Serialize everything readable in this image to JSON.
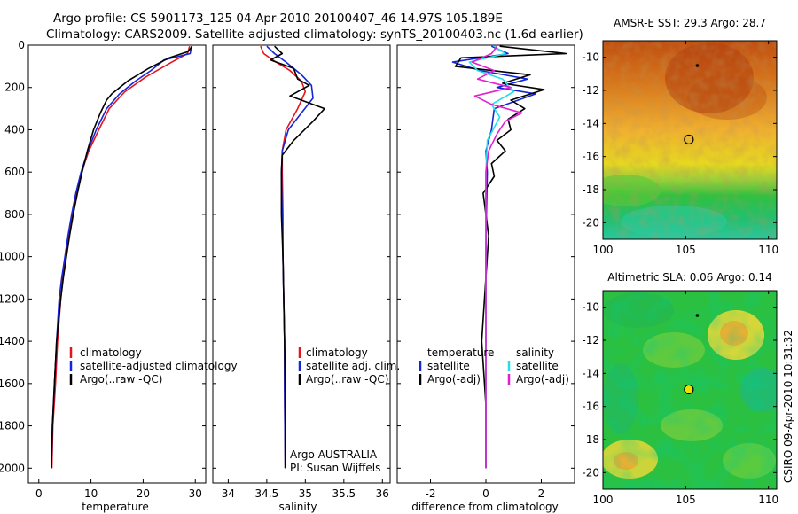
{
  "header": {
    "line1": "Argo profile: CS 5901173_125 04-Apr-2010 20100407_46 14.97S 105.189E",
    "line2": "Climatology: CARS2009. Satellite-adjusted climatology: synTS_20100403.nc (1.6d earlier)"
  },
  "footer": "CSIRO 09-Apr-2010 10:31:32",
  "colors": {
    "red": "#e8141c",
    "blue": "#1426d8",
    "black": "#000000",
    "cyan": "#22e0e8",
    "magenta": "#e020d0"
  },
  "chart_data": [
    {
      "type": "line",
      "name": "temperature-profile",
      "xlabel": "temperature",
      "ylabel": "",
      "xlim": [
        -2,
        32
      ],
      "ylim": [
        2070,
        0
      ],
      "xticks": [
        0,
        10,
        20,
        30
      ],
      "yticks": [
        0,
        200,
        400,
        600,
        800,
        1000,
        1200,
        1400,
        1600,
        1800,
        2000
      ],
      "legend": {
        "position": "bottom-right",
        "entries": [
          {
            "label": "climatology",
            "color": "#e8141c"
          },
          {
            "label": "satellite-adjusted climatology",
            "color": "#1426d8"
          },
          {
            "label": "Argo(..raw -QC)",
            "color": "#000000"
          }
        ]
      },
      "series": [
        {
          "name": "climatology",
          "color": "#e8141c",
          "x": [
            28.9,
            28.5,
            25.5,
            20.5,
            16.5,
            13.5,
            11.5,
            9.6,
            8.2,
            7.2,
            6.4,
            5.8,
            5.2,
            4.6,
            4.2,
            3.6,
            3.2,
            2.7,
            2.5
          ],
          "y": [
            5,
            40,
            80,
            150,
            220,
            300,
            400,
            500,
            600,
            700,
            800,
            900,
            1000,
            1100,
            1200,
            1400,
            1600,
            1800,
            2000
          ]
        },
        {
          "name": "satellite-adjusted climatology",
          "color": "#1426d8",
          "x": [
            29.3,
            29.0,
            24.0,
            21.5,
            18.5,
            15.5,
            13.0,
            11.0,
            9.4,
            8.1,
            7.1,
            6.3,
            5.6,
            5.0,
            4.4,
            3.9,
            3.4,
            3.0,
            2.6,
            2.4
          ],
          "y": [
            5,
            40,
            70,
            120,
            170,
            230,
            300,
            400,
            500,
            600,
            700,
            800,
            900,
            1000,
            1100,
            1200,
            1400,
            1600,
            1800,
            2000
          ]
        },
        {
          "name": "Argo(..raw -QC)",
          "color": "#000000",
          "x": [
            29.4,
            28.6,
            25.0,
            21.0,
            17.0,
            14.0,
            13.0,
            11.8,
            10.5,
            9.3,
            8.3,
            7.4,
            6.6,
            5.9,
            5.3,
            4.7,
            4.2,
            3.4,
            3.0,
            2.6,
            2.4
          ],
          "y": [
            5,
            30,
            60,
            110,
            170,
            230,
            260,
            320,
            400,
            500,
            600,
            700,
            800,
            900,
            1000,
            1100,
            1200,
            1400,
            1600,
            1800,
            2000
          ]
        }
      ]
    },
    {
      "type": "line",
      "name": "salinity-profile",
      "xlabel": "salinity",
      "xlim": [
        33.8,
        36.1
      ],
      "ylim": [
        2070,
        0
      ],
      "xticks": [
        34,
        34.5,
        35,
        35.5,
        36
      ],
      "legend": {
        "position": "bottom-right",
        "entries": [
          {
            "label": "climatology",
            "color": "#e8141c"
          },
          {
            "label": "satellite adj. clim.",
            "color": "#1426d8"
          },
          {
            "label": "Argo(..raw -QC)",
            "color": "#000000"
          }
        ]
      },
      "annotation": [
        "Argo AUSTRALIA",
        "PI: Susan Wijffels"
      ],
      "series": [
        {
          "name": "climatology",
          "color": "#e8141c",
          "x": [
            34.42,
            34.46,
            34.62,
            34.8,
            34.95,
            35.0,
            34.9,
            34.75,
            34.7,
            34.7,
            34.71,
            34.71,
            34.72,
            34.73,
            34.73,
            34.74
          ],
          "y": [
            5,
            40,
            80,
            120,
            170,
            220,
            300,
            400,
            500,
            600,
            800,
            1000,
            1200,
            1400,
            1600,
            2000
          ]
        },
        {
          "name": "satellite adj. clim.",
          "color": "#1426d8",
          "x": [
            34.5,
            34.6,
            34.75,
            34.95,
            35.08,
            35.1,
            34.95,
            34.78,
            34.7,
            34.69,
            34.7,
            34.71,
            34.72,
            34.73,
            34.73,
            34.74
          ],
          "y": [
            5,
            40,
            80,
            140,
            190,
            250,
            320,
            400,
            500,
            600,
            800,
            1000,
            1200,
            1400,
            1600,
            2000
          ]
        },
        {
          "name": "Argo(..raw -QC)",
          "color": "#000000",
          "x": [
            34.6,
            34.7,
            34.55,
            34.85,
            34.9,
            35.05,
            34.8,
            35.25,
            35.1,
            34.85,
            34.7,
            34.69,
            34.69,
            34.71,
            34.72,
            34.73,
            34.74,
            34.74
          ],
          "y": [
            5,
            40,
            70,
            110,
            160,
            190,
            240,
            300,
            360,
            450,
            520,
            600,
            800,
            1000,
            1200,
            1400,
            1600,
            2000
          ]
        }
      ]
    },
    {
      "type": "line",
      "name": "difference-profile",
      "xlabel": "difference from climatology",
      "xlim": [
        -3.2,
        3.2
      ],
      "ylim": [
        2070,
        0
      ],
      "xticks": [
        -2,
        0,
        2
      ],
      "legend": {
        "position": "bottom",
        "columns": [
          {
            "heading": "temperature",
            "entries": [
              {
                "label": "satellite",
                "color": "#1426d8"
              },
              {
                "label": "Argo(-adj)",
                "color": "#000000"
              }
            ]
          },
          {
            "heading": "salinity",
            "entries": [
              {
                "label": "satellite",
                "color": "#22e0e8"
              },
              {
                "label": "Argo(-adj)",
                "color": "#e020d0"
              }
            ]
          }
        ]
      },
      "series": [
        {
          "name": "temperature satellite",
          "color": "#1426d8",
          "x": [
            0.2,
            0.8,
            -1.2,
            -0.2,
            1.5,
            0.4,
            1.8,
            0.3,
            0.2,
            0.0,
            0.05,
            0.02,
            0.0,
            0.0,
            0.0
          ],
          "y": [
            5,
            40,
            80,
            120,
            160,
            200,
            230,
            300,
            400,
            500,
            600,
            800,
            1000,
            1500,
            2000
          ]
        },
        {
          "name": "temperature Argo(-adj)",
          "color": "#000000",
          "x": [
            0.5,
            2.9,
            -0.9,
            -1.1,
            1.6,
            0.6,
            2.1,
            0.9,
            1.4,
            0.8,
            0.9,
            0.4,
            0.7,
            0.2,
            0.3,
            -0.1,
            0.1,
            -0.15,
            0.0,
            0.0
          ],
          "y": [
            5,
            40,
            60,
            100,
            140,
            180,
            210,
            260,
            300,
            350,
            400,
            450,
            500,
            560,
            620,
            700,
            900,
            1400,
            1700,
            2000
          ]
        },
        {
          "name": "salinity satellite",
          "color": "#22e0e8",
          "x": [
            0.3,
            0.7,
            -0.6,
            -0.3,
            0.6,
            1.0,
            0.2,
            0.5,
            0.05,
            0.0,
            0.0,
            0.0
          ],
          "y": [
            5,
            40,
            80,
            120,
            160,
            220,
            280,
            340,
            450,
            600,
            1000,
            2000
          ]
        },
        {
          "name": "salinity Argo(-adj)",
          "color": "#e020d0",
          "x": [
            0.4,
            0.2,
            -0.5,
            0.3,
            -0.3,
            0.9,
            -0.4,
            0.2,
            1.3,
            0.7,
            0.4,
            0.1,
            0.0,
            0.0,
            0.0
          ],
          "y": [
            5,
            40,
            80,
            120,
            160,
            200,
            240,
            280,
            320,
            360,
            420,
            500,
            600,
            1000,
            2000
          ]
        }
      ]
    },
    {
      "type": "heatmap",
      "name": "sst-map",
      "title": "AMSR-E SST: 29.3  Argo: 28.7",
      "xlim": [
        100,
        110.5
      ],
      "ylim": [
        -21,
        -9
      ],
      "xticks": [
        100,
        105,
        110
      ],
      "yticks": [
        -10,
        -12,
        -14,
        -16,
        -18,
        -20
      ],
      "argo_position": {
        "lon": 105.189,
        "lat": -14.97
      },
      "marker": {
        "lon": 105.7,
        "lat": -10.5
      }
    },
    {
      "type": "heatmap",
      "name": "sla-map",
      "title": "Altimetric SLA: 0.06  Argo: 0.14",
      "xlim": [
        100,
        110.5
      ],
      "ylim": [
        -21,
        -9
      ],
      "xticks": [
        100,
        105,
        110
      ],
      "yticks": [
        -10,
        -12,
        -14,
        -16,
        -18,
        -20
      ],
      "argo_position": {
        "lon": 105.189,
        "lat": -14.97
      },
      "marker": {
        "lon": 105.7,
        "lat": -10.5
      }
    }
  ]
}
